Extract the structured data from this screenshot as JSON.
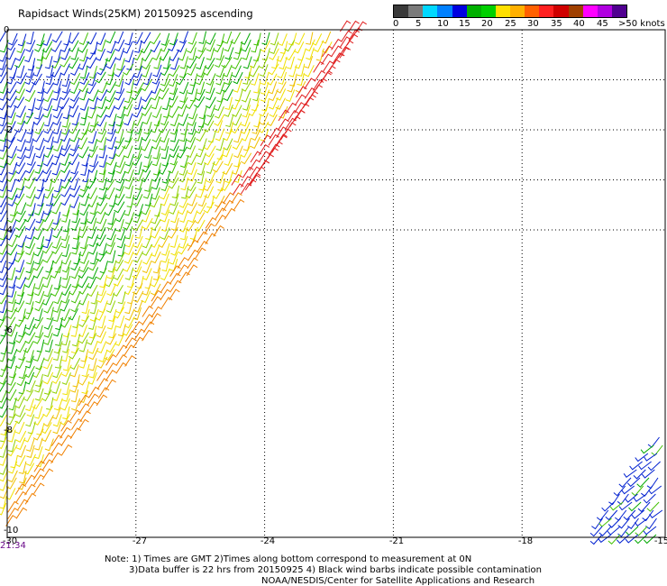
{
  "title": "Rapidsact Winds(25KM) 20150925 ascending",
  "colorbar": {
    "colors": [
      "#3a3a3a",
      "#7a7a7a",
      "#00d8ff",
      "#0080ff",
      "#0000e0",
      "#00b000",
      "#00d000",
      "#ffe000",
      "#ffb000",
      "#ff6000",
      "#ff2020",
      "#d00000",
      "#a04000",
      "#ff00ff",
      "#b000e0",
      "#500090"
    ],
    "labels": [
      "0",
      "5",
      "10",
      "15",
      "20",
      "25",
      "30",
      "35",
      "40",
      "45",
      ">50 knots"
    ],
    "units": "knots"
  },
  "axes": {
    "x_ticks": [
      "-27",
      "-24",
      "-21",
      "-18",
      "-15"
    ],
    "x_first": "-30",
    "y_ticks": [
      "0",
      "-2",
      "-4",
      "-6",
      "-8",
      "-10"
    ]
  },
  "time_label": "21:34",
  "notes": {
    "line1": "Note: 1) Times are GMT 2)Times along bottom correspond to measurement at 0N",
    "line2": "3)Data buffer is 22 hrs from 20150925 4) Black wind barbs indicate possible contamination",
    "line3": "NOAA/NESDIS/Center for Satellite Applications and Research"
  }
}
